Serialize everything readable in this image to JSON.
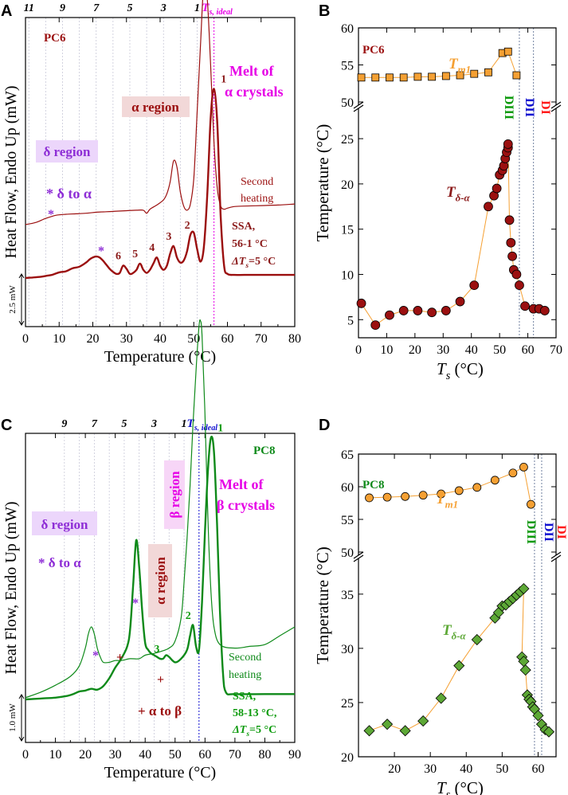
{
  "figure": {
    "panels": [
      {
        "id": "A",
        "label": "A"
      },
      {
        "id": "B",
        "label": "B"
      },
      {
        "id": "C",
        "label": "C"
      },
      {
        "id": "D",
        "label": "D"
      }
    ]
  },
  "colors": {
    "pc6": "#9b0f0f",
    "pc8": "#0f8a1a",
    "magenta": "#e600e6",
    "purple": "#8e2ed6",
    "orange": "#f5a033",
    "dark_red_text": "#8b1a1a",
    "blue": "#1010d0",
    "red": "#ff1a1a",
    "green_text": "#0c9a0c"
  },
  "chart_data": [
    {
      "panel": "A",
      "type": "line",
      "title": "PC6",
      "xlabel": "Temperature (°C)",
      "ylabel": "Heat Flow, Endo Up (mW)",
      "xlim": [
        0,
        80
      ],
      "xticks": [
        0,
        10,
        20,
        30,
        40,
        50,
        60,
        70,
        80
      ],
      "top_labels": [
        "11",
        "9",
        "7",
        "5",
        "3",
        "1"
      ],
      "top_label_temps": [
        1,
        11,
        21,
        31,
        41,
        51
      ],
      "ts_ideal_label": "T",
      "ts_ideal_sub": "s, ideal",
      "ts_ideal_temp": 56,
      "scale_bar": "2.5 mW",
      "annotations": {
        "pc_label": "PC6",
        "alpha_region": "α  region",
        "melt_line1": "Melt of",
        "melt_line2": "α crystals",
        "delta_region": "δ region",
        "delta_to_alpha": "* δ to α",
        "star": "*",
        "second_line1": "Second",
        "second_line2": "heating",
        "ssa_line1": "SSA,",
        "ssa_line2": "56-1 °C",
        "ssa_line3": "ΔT",
        "ssa_line3_sub": "s",
        "ssa_line3_end": "=5 °C"
      },
      "peak_labels": [
        {
          "text": "1",
          "x": 56.5
        },
        {
          "text": "2",
          "x": 49.5
        },
        {
          "text": "3",
          "x": 44
        },
        {
          "text": "4",
          "x": 39
        },
        {
          "text": "5",
          "x": 34
        },
        {
          "text": "6",
          "x": 29
        }
      ],
      "series": [
        {
          "name": "SSA",
          "x": [
            0,
            2,
            4,
            6,
            8,
            10,
            12,
            14,
            16,
            18,
            19,
            20,
            21,
            22,
            23,
            24,
            25,
            26,
            27,
            28,
            29,
            30,
            31,
            32,
            33,
            34,
            35,
            36,
            37,
            38,
            39,
            40,
            41,
            42,
            43,
            44,
            45,
            46,
            47,
            48,
            49,
            50,
            51,
            52,
            53,
            54,
            55,
            56,
            57,
            58,
            59,
            60,
            62,
            65,
            70,
            80
          ],
          "y": [
            0,
            0.05,
            0.1,
            0.2,
            0.32,
            0.55,
            0.65,
            0.95,
            1.1,
            1.5,
            1.8,
            2.0,
            2.1,
            2.0,
            1.7,
            1.3,
            0.9,
            0.6,
            0.4,
            0.5,
            1.2,
            0.9,
            0.4,
            0.5,
            0.8,
            1.4,
            0.8,
            0.5,
            0.8,
            1.4,
            2.0,
            1.2,
            0.8,
            1.2,
            2.4,
            3.1,
            2.0,
            1.5,
            1.7,
            2.6,
            4.2,
            4.4,
            2.8,
            1.6,
            3.0,
            8.0,
            15.5,
            18.4,
            15.0,
            6.0,
            1.2,
            0.4,
            0.3,
            0.3,
            0.3,
            0.3
          ],
          "offset": 0
        },
        {
          "name": "Second heating",
          "x": [
            0,
            3,
            6,
            9,
            12,
            15,
            18,
            21,
            24,
            27,
            30,
            33,
            35,
            36,
            37,
            39,
            41,
            42,
            43,
            44,
            45,
            46,
            47,
            48,
            49,
            50,
            51,
            52,
            53,
            54,
            55,
            56,
            57,
            58,
            59,
            60,
            62,
            65,
            70,
            75,
            80
          ],
          "y": [
            0,
            0.2,
            0.6,
            0.9,
            1.0,
            1.05,
            1.1,
            1.2,
            1.25,
            1.3,
            1.35,
            1.4,
            1.4,
            1.1,
            1.5,
            1.9,
            2.4,
            3.0,
            4.2,
            6.2,
            5.6,
            3.2,
            1.8,
            1.4,
            2.0,
            4.5,
            11.0,
            17.5,
            23.5,
            22.0,
            15.5,
            8.0,
            3.5,
            1.8,
            1.5,
            1.6,
            1.75,
            1.8,
            1.85,
            1.9,
            2.0
          ],
          "offset": 5.2
        }
      ]
    },
    {
      "panel": "B",
      "type": "scatter",
      "title": "PC6",
      "xlabel": "T",
      "xlabel_sub": "s",
      "xlabel_end": " (°C)",
      "ylabel": "Temperature (°C)",
      "xlim": [
        0,
        70
      ],
      "xticks": [
        0,
        10,
        20,
        30,
        40,
        50,
        60,
        70
      ],
      "ylim_top": [
        50,
        60
      ],
      "yticks_top": [
        50,
        55,
        60
      ],
      "ylim_bottom": [
        3,
        28
      ],
      "yticks_bottom": [
        5,
        10,
        15,
        20,
        25
      ],
      "domain_lines": [
        57,
        62
      ],
      "domain_labels": [
        "DIII",
        "DII",
        "DI"
      ],
      "series_labels": {
        "tm1": "T",
        "tm1_sub": "m1",
        "td": "T",
        "td_sub": "δ-α"
      },
      "series": [
        {
          "name": "Tm1",
          "x": [
            1,
            6,
            11,
            16,
            21,
            26,
            31,
            36,
            41,
            46,
            51,
            53,
            56
          ],
          "y": [
            53.3,
            53.3,
            53.3,
            53.3,
            53.4,
            53.4,
            53.5,
            53.6,
            53.8,
            54.0,
            56.6,
            56.8,
            53.6
          ]
        },
        {
          "name": "Tδ-α",
          "x": [
            1,
            6,
            11,
            16,
            21,
            26,
            31,
            36,
            41,
            46,
            48,
            49,
            50,
            51,
            51.5,
            52,
            52.5,
            53,
            53,
            53.5,
            54,
            54.5,
            55,
            56,
            57,
            59,
            62,
            64,
            66
          ],
          "y": [
            6.8,
            4.4,
            5.5,
            6.0,
            6.0,
            5.8,
            6.0,
            7.0,
            8.8,
            17.5,
            18.7,
            19.5,
            21.0,
            21.5,
            22.0,
            22.8,
            23.5,
            24.0,
            24.4,
            16.0,
            13.5,
            12.0,
            10.5,
            10.0,
            8.8,
            6.5,
            6.2,
            6.2,
            6.0
          ]
        }
      ]
    },
    {
      "panel": "C",
      "type": "line",
      "title": "PC8",
      "xlabel": "Temperature (°C)",
      "ylabel": "Heat Flow, Endo Up (mW)",
      "xlim": [
        0,
        90
      ],
      "xticks": [
        0,
        10,
        20,
        30,
        40,
        50,
        60,
        70,
        80,
        90
      ],
      "top_labels": [
        "9",
        "7",
        "5",
        "3",
        "1"
      ],
      "top_label_temps": [
        13,
        23,
        33,
        43,
        53
      ],
      "ts_ideal_label": "T",
      "ts_ideal_sub": "s, ideal",
      "ts_ideal_temp": 58,
      "scale_bar": "1.0 mW",
      "annotations": {
        "pc_label": "PC8",
        "beta_region": "β region",
        "melt_line1": "Melt of",
        "melt_line2": "β crystals",
        "delta_region": "δ region",
        "delta_to_alpha": "* δ to α",
        "alpha_region": "α  region",
        "star": "*",
        "plus": "+",
        "alpha_to_beta": "+ α to β",
        "second_line1": "Second",
        "second_line2": "heating",
        "ssa_line1": "SSA,",
        "ssa_line2": "58-13 °C,",
        "ssa_line3": "ΔT",
        "ssa_line3_sub": "s",
        "ssa_line3_end": "=5 °C"
      },
      "peak_labels": [
        {
          "text": "1",
          "x": 62.5
        },
        {
          "text": "2",
          "x": 56
        },
        {
          "text": "3",
          "x": 45.5
        }
      ],
      "series": [
        {
          "name": "SSA",
          "x": [
            0,
            5,
            10,
            14,
            16,
            18,
            20,
            22,
            24,
            26,
            28,
            30,
            32,
            34,
            35,
            36,
            37,
            38,
            39,
            40,
            41,
            42,
            43,
            44,
            45,
            46,
            47,
            48,
            50,
            52,
            54,
            55,
            56,
            57,
            58,
            59,
            60,
            61,
            62,
            63,
            64,
            65,
            66,
            67,
            70,
            80,
            90
          ],
          "y": [
            0,
            0.05,
            0.1,
            0.2,
            0.3,
            0.45,
            0.5,
            0.6,
            0.55,
            0.75,
            1.2,
            1.8,
            2.3,
            3.0,
            4.0,
            6.5,
            9.0,
            7.5,
            5.0,
            3.2,
            2.8,
            2.6,
            2.5,
            2.4,
            2.3,
            2.3,
            2.5,
            2.4,
            2.1,
            2.3,
            2.8,
            3.6,
            4.2,
            3.0,
            2.8,
            5.5,
            9.5,
            13.0,
            14.8,
            14.0,
            10.0,
            5.0,
            1.5,
            0.4,
            0.3,
            0.3,
            0.3
          ],
          "offset": 0
        },
        {
          "name": "Second heating",
          "x": [
            0,
            5,
            10,
            15,
            18,
            20,
            21,
            22,
            23,
            24,
            25,
            26,
            28,
            30,
            32,
            35,
            38,
            40,
            43,
            45,
            48,
            50,
            52,
            53,
            54,
            55,
            56,
            57,
            58,
            58.5,
            59,
            60,
            61,
            62,
            63,
            65,
            70,
            75,
            80,
            85,
            90
          ],
          "y": [
            0,
            0.3,
            0.7,
            1.2,
            1.8,
            2.8,
            3.6,
            4.0,
            3.6,
            2.8,
            2.3,
            2.0,
            2.0,
            2.1,
            2.1,
            2.2,
            2.2,
            2.4,
            2.5,
            2.6,
            2.8,
            3.2,
            4.5,
            6.5,
            9.0,
            12.0,
            15.5,
            18.5,
            21.0,
            21.3,
            20.5,
            16.0,
            10.0,
            6.0,
            4.0,
            3.0,
            2.8,
            2.9,
            3.0,
            3.5,
            4.0
          ],
          "offset": 0.1
        }
      ]
    },
    {
      "panel": "D",
      "type": "scatter",
      "title": "PC8",
      "xlabel": "T",
      "xlabel_sub": "s",
      "xlabel_end": " (°C)",
      "ylabel": "Temperature (°C)",
      "xlim": [
        10,
        65
      ],
      "xticks": [
        20,
        30,
        40,
        50,
        60
      ],
      "ylim_top": [
        50,
        65
      ],
      "yticks_top": [
        50,
        55,
        60,
        65
      ],
      "ylim_bottom": [
        20,
        38
      ],
      "yticks_bottom": [
        20,
        25,
        30,
        35
      ],
      "domain_lines": [
        59,
        61
      ],
      "domain_labels": [
        "DIII",
        "DII",
        "DI"
      ],
      "series_labels": {
        "tm1": "T",
        "tm1_sub": "m1",
        "td": "T",
        "td_sub": "δ-α"
      },
      "series": [
        {
          "name": "Tm1",
          "x": [
            13,
            18,
            23,
            28,
            33,
            38,
            43,
            48,
            53,
            56,
            58
          ],
          "y": [
            58.3,
            58.4,
            58.5,
            58.7,
            58.9,
            59.4,
            59.9,
            61.0,
            62.1,
            63.0,
            57.3
          ]
        },
        {
          "name": "Tδ-α",
          "x": [
            13,
            18,
            23,
            28,
            33,
            38,
            43,
            48,
            49,
            50,
            51,
            52,
            53,
            54,
            55,
            56,
            55.5,
            56,
            56.5,
            57,
            57.5,
            58,
            58.5,
            59,
            60,
            61,
            62,
            63
          ],
          "y": [
            22.4,
            23.0,
            22.4,
            23.3,
            25.4,
            28.4,
            30.8,
            32.8,
            33.3,
            33.9,
            34.0,
            34.3,
            34.6,
            34.9,
            35.2,
            35.5,
            29.2,
            28.8,
            28.0,
            25.7,
            25.3,
            25.1,
            24.6,
            24.4,
            23.8,
            23.0,
            22.5,
            22.3
          ]
        }
      ]
    }
  ]
}
